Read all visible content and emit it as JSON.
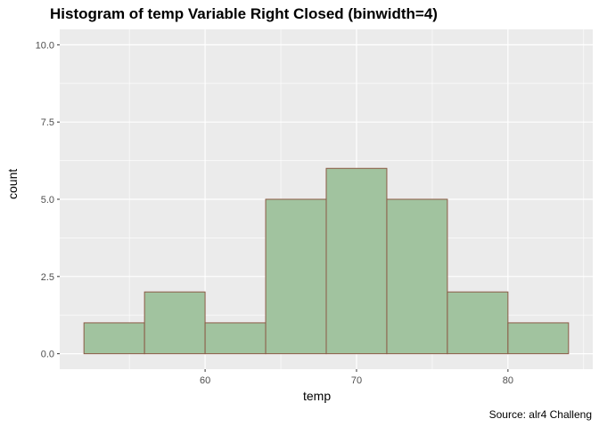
{
  "chart_data": {
    "type": "bar",
    "title": "Histogram of temp Variable Right Closed (binwidth=4)",
    "xlabel": "temp",
    "ylabel": "count",
    "caption": "Source: alr4 Challeng",
    "bins": [
      {
        "start": 52,
        "end": 56,
        "count": 1
      },
      {
        "start": 56,
        "end": 60,
        "count": 2
      },
      {
        "start": 60,
        "end": 64,
        "count": 1
      },
      {
        "start": 64,
        "end": 68,
        "count": 5
      },
      {
        "start": 68,
        "end": 72,
        "count": 6
      },
      {
        "start": 72,
        "end": 76,
        "count": 5
      },
      {
        "start": 76,
        "end": 80,
        "count": 2
      },
      {
        "start": 80,
        "end": 84,
        "count": 1
      }
    ],
    "xlim": [
      50.4,
      85.6
    ],
    "ylim": [
      -0.5,
      10.5
    ],
    "x_ticks": [
      60,
      70,
      80
    ],
    "y_ticks": [
      0,
      2.5,
      5,
      7.5,
      10
    ],
    "y_tick_labels": [
      "0.0",
      "2.5",
      "5.0",
      "7.5",
      "10.0"
    ],
    "grid": true,
    "colors": {
      "panel": "#ebebeb",
      "grid": "#ffffff",
      "bar_fill": "#a1c39f",
      "bar_stroke": "#8b5a45"
    }
  }
}
